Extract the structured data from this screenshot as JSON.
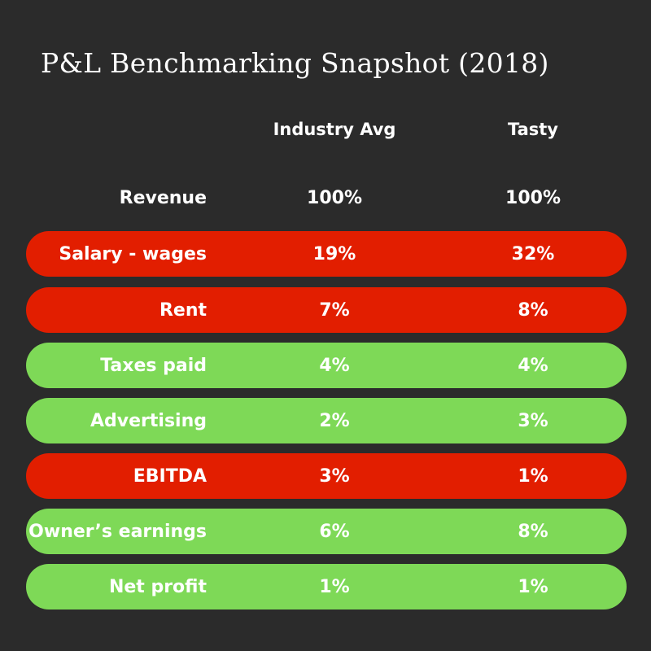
{
  "title": "P&L Benchmarking Snapshot (2018)",
  "colors": {
    "background": "#2b2b2b",
    "worse": "#e21e00",
    "ok": "#7ed957",
    "text": "#ffffff"
  },
  "chart_data": {
    "type": "table",
    "title": "P&L Benchmarking Snapshot (2018)",
    "columns": [
      "Industry Avg",
      "Tasty"
    ],
    "rows": [
      {
        "label": "Revenue",
        "industry": "100%",
        "tasty": "100%",
        "status": "none"
      },
      {
        "label": "Salary - wages",
        "industry": "19%",
        "tasty": "32%",
        "status": "bad"
      },
      {
        "label": "Rent",
        "industry": "7%",
        "tasty": "8%",
        "status": "bad"
      },
      {
        "label": "Taxes paid",
        "industry": "4%",
        "tasty": "4%",
        "status": "good"
      },
      {
        "label": "Advertising",
        "industry": "2%",
        "tasty": "3%",
        "status": "good"
      },
      {
        "label": "EBITDA",
        "industry": "3%",
        "tasty": "1%",
        "status": "bad"
      },
      {
        "label": "Owner’s earnings",
        "industry": "6%",
        "tasty": "8%",
        "status": "good"
      },
      {
        "label": "Net profit",
        "industry": "1%",
        "tasty": "1%",
        "status": "good"
      }
    ]
  }
}
